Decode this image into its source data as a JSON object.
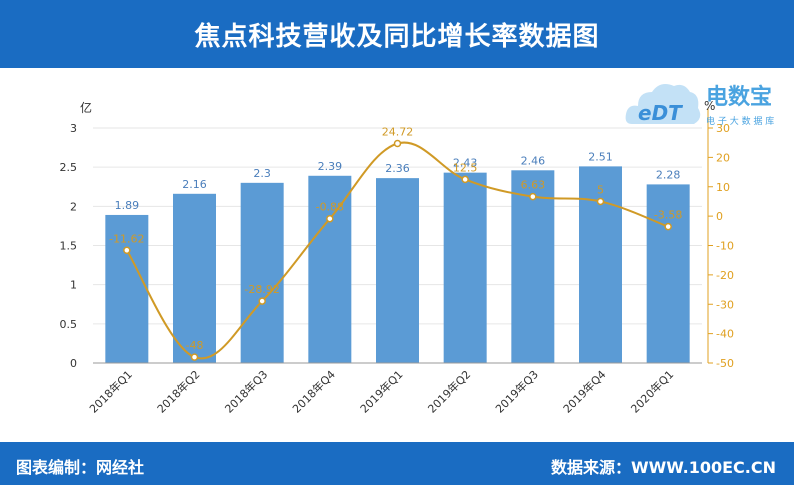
{
  "header": {
    "title": "焦点科技营收及同比增长率数据图"
  },
  "footer": {
    "left": "图表编制：网经社",
    "right": "数据来源：WWW.100EC.CN"
  },
  "logo": {
    "mark": "eDT",
    "name": "电数宝",
    "tagline": "电 子 大 数 据 库"
  },
  "colors": {
    "bar": "#5b9bd5",
    "line": "#d09a26",
    "header": "#1a6cc2",
    "left_axis_label": "#4a7ebb",
    "right_axis": "#e0a020"
  },
  "chart_data": {
    "type": "bar",
    "categories": [
      "2018年Q1",
      "2018年Q2",
      "2018年Q3",
      "2018年Q4",
      "2019年Q1",
      "2019年Q2",
      "2019年Q3",
      "2019年Q4",
      "2020年Q1"
    ],
    "y_unit": "亿",
    "y2_unit": "%",
    "ylim": [
      0,
      3
    ],
    "yticks": [
      "0",
      "0.5",
      "1",
      "1.5",
      "2",
      "2.5",
      "3"
    ],
    "y2lim": [
      -50,
      30
    ],
    "y2ticks": [
      "-50",
      "-40",
      "-30",
      "-20",
      "-10",
      "0",
      "10",
      "20",
      "30"
    ],
    "series": [
      {
        "type": "bar",
        "values": [
          1.89,
          2.16,
          2.3,
          2.39,
          2.36,
          2.43,
          2.46,
          2.51,
          2.28
        ],
        "labels": [
          "1.89",
          "2.16",
          "2.3",
          "2.39",
          "2.36",
          "2.43",
          "2.46",
          "2.51",
          "2.28"
        ]
      },
      {
        "type": "line",
        "axis": "right",
        "values": [
          -11.62,
          -48,
          -28.92,
          -0.88,
          24.72,
          12.5,
          6.63,
          5,
          -3.58
        ],
        "labels": [
          "-11.62",
          "-48",
          "-28.92",
          "-0.88",
          "24.72",
          "12.5",
          "6.63",
          "5",
          "-3.58"
        ]
      }
    ],
    "grid": true
  }
}
